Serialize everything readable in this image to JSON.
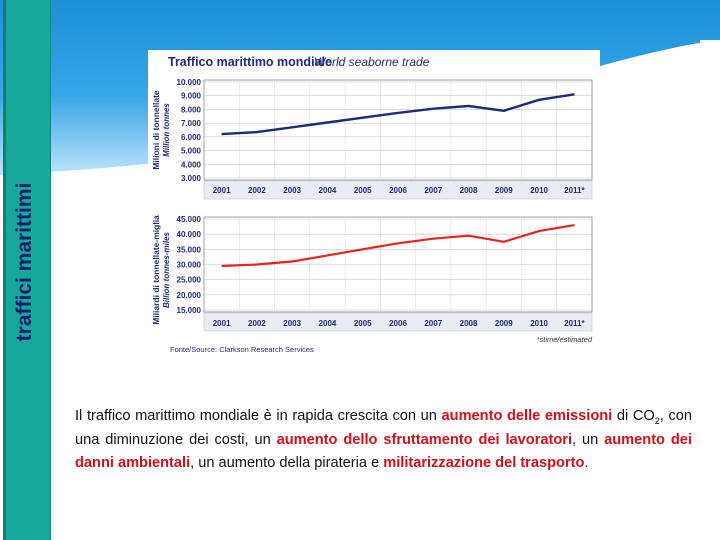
{
  "slide": {
    "side_title": "traffici marittimi",
    "colors": {
      "sidebar": "#18a89a",
      "sidebar_title": "#12206d",
      "sky_top": "#1b8fd9",
      "highlight": "#d0101a"
    }
  },
  "paragraph": {
    "p1": "Il traffico marittimo mondiale è in rapida crescita con un ",
    "h1": "aumento delle emissioni",
    "p2": " di CO",
    "sub": "2",
    "p3": ", con una diminuzione dei costi, un ",
    "h2": "aumento dello sfruttamento dei lavoratori",
    "p4": ", un ",
    "h3": "aumento dei danni ambientali",
    "p5": ", un aumento della pirateria e ",
    "h4": "militarizzazione del trasporto",
    "p6": "."
  },
  "chart_data": [
    {
      "type": "line",
      "title": "Traffico marittimo mondiale",
      "subtitle": "World seaborne trade",
      "ylabel": "Milioni di tonnellate",
      "ylabel2": "Million tonnes",
      "xlabel": "",
      "categories": [
        "2001",
        "2002",
        "2003",
        "2004",
        "2005",
        "2006",
        "2007",
        "2008",
        "2009",
        "2010",
        "2011*"
      ],
      "y_ticks": [
        "3.000",
        "4.000",
        "5.000",
        "6.000",
        "7.000",
        "8.000",
        "9.000",
        "10.000"
      ],
      "ylim": [
        3000,
        10000
      ],
      "grid": true,
      "series": [
        {
          "name": "World seaborne trade",
          "color": "#1f2a7a",
          "values": [
            6200,
            6350,
            6700,
            7050,
            7400,
            7750,
            8050,
            8250,
            7900,
            8700,
            9100
          ]
        }
      ]
    },
    {
      "type": "line",
      "ylabel": "Miliardi di tonnellate-miglia",
      "ylabel2": "Billion tonnes-miles",
      "xlabel": "",
      "categories": [
        "2001",
        "2002",
        "2003",
        "2004",
        "2005",
        "2006",
        "2007",
        "2008",
        "2009",
        "2010",
        "2011*"
      ],
      "y_ticks": [
        "15.000",
        "20.000",
        "25.000",
        "30.000",
        "35.000",
        "40.000",
        "45.000"
      ],
      "ylim": [
        15000,
        45000
      ],
      "grid": true,
      "series": [
        {
          "name": "Billion tonnes-miles",
          "color": "#e8231b",
          "values": [
            29500,
            30000,
            31000,
            33000,
            35000,
            37000,
            38500,
            39500,
            37500,
            41000,
            43000
          ]
        }
      ],
      "source": "Fonte/Source: Clarkson Research Services",
      "note": "*stime/estimated"
    }
  ]
}
